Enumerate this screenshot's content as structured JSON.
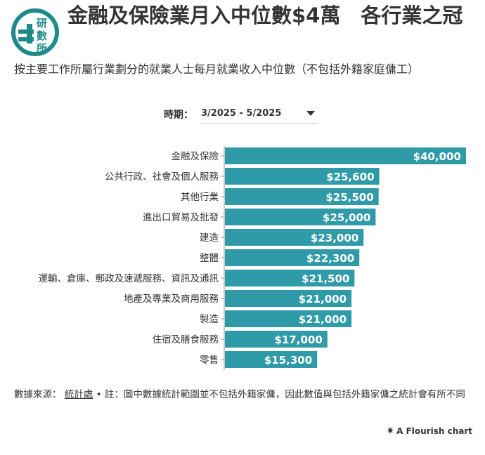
{
  "header": {
    "logo_text": "研數所",
    "title": "金融及保險業月入中位數$4萬　各行業之冠",
    "subtitle": "按主要工作所屬行業劃分的就業人士每月就業收入中位數（不包括外籍家庭傭工）"
  },
  "filter": {
    "label": "時期：",
    "selected": "3/2025 - 5/2025"
  },
  "chart_data": {
    "type": "bar",
    "orientation": "horizontal",
    "categories": [
      "金融及保險",
      "公共行政、社會及個人服務",
      "其他行業",
      "進出口貿易及批發",
      "建造",
      "整體",
      "運輸、倉庫、郵政及速遞服務、資訊及通訊",
      "地產及專業及商用服務",
      "製造",
      "住宿及膳食服務",
      "零售"
    ],
    "values": [
      40000,
      25600,
      25500,
      25000,
      23000,
      22300,
      21500,
      21000,
      21000,
      17000,
      15300
    ],
    "labels": [
      "$40,000",
      "$25,600",
      "$25,500",
      "$25,000",
      "$23,000",
      "$22,300",
      "$21,500",
      "$21,000",
      "$21,000",
      "$17,000",
      "$15,300"
    ],
    "xlim": [
      0,
      40000
    ],
    "bar_color": "#2f9aa8",
    "label_color": "#ffffff",
    "grid": false
  },
  "footer": {
    "source_prefix": "數據來源：",
    "source_link": "統計處",
    "note": "• 註：圖中數據統計範圍並不包括外籍家傭，因此數值與包括外籍家傭之統計會有所不同",
    "credit": "A Flourish chart"
  }
}
